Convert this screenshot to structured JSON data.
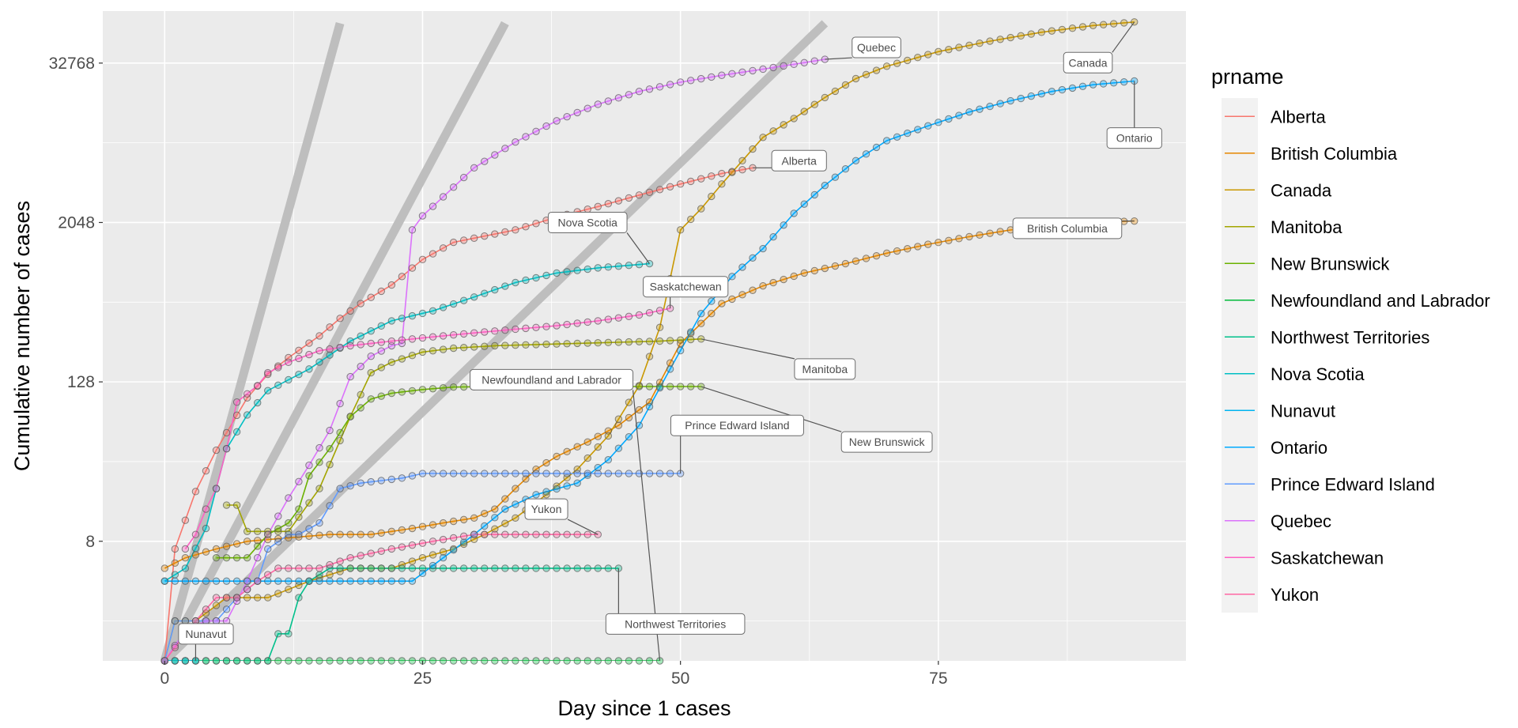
{
  "chart_data": {
    "type": "line",
    "xlabel": "Day since 1 cases",
    "ylabel": "Cumulative number of cases",
    "legend_title": "prname",
    "legend_position": "right",
    "y_scale": "log2",
    "xlim": [
      -6,
      99
    ],
    "ylim": [
      1,
      81000
    ],
    "x_ticks": [
      0,
      25,
      50,
      75
    ],
    "y_ticks": [
      8,
      128,
      2048,
      32768
    ],
    "grid": true,
    "background_color": "#ebebeb",
    "reference_lines": [
      {
        "x": [
          0,
          17
        ],
        "y": [
          1,
          65536
        ]
      },
      {
        "x": [
          0,
          33
        ],
        "y": [
          1,
          65536
        ]
      },
      {
        "x": [
          0,
          64
        ],
        "y": [
          1,
          65536
        ]
      }
    ],
    "series": [
      {
        "name": "Alberta",
        "color": "#F8766D",
        "label": "Alberta",
        "label_at": [
          61.5,
          6000
        ],
        "x": [
          0,
          1,
          3,
          5,
          8,
          10,
          12,
          15,
          17,
          19,
          22,
          25,
          28,
          30,
          34,
          38,
          42,
          46,
          50,
          54,
          57
        ],
        "y": [
          1,
          7,
          19,
          39,
          97,
          146,
          195,
          285,
          386,
          500,
          690,
          1075,
          1450,
          1560,
          1800,
          2250,
          2700,
          3300,
          4000,
          4800,
          5300
        ]
      },
      {
        "name": "British Columbia",
        "color": "#E58700",
        "label": "British Columbia",
        "label_at": [
          87.5,
          1850
        ],
        "x": [
          0,
          2,
          5,
          8,
          12,
          16,
          20,
          24,
          27,
          30,
          32,
          34,
          36,
          38,
          41,
          44,
          47,
          50,
          54,
          58,
          62,
          66,
          70,
          74,
          78,
          82,
          86,
          90,
          94
        ],
        "y": [
          5,
          6,
          7,
          8,
          8.5,
          9,
          9,
          10,
          11,
          12,
          14,
          20,
          28,
          35,
          45,
          60,
          90,
          250,
          500,
          680,
          850,
          1000,
          1200,
          1400,
          1600,
          1800,
          1950,
          2050,
          2100
        ]
      },
      {
        "name": "Canada",
        "color": "#C99800",
        "label": "Canada",
        "label_at": [
          89.5,
          33000
        ],
        "x": [
          0,
          1,
          3,
          6,
          10,
          14,
          18,
          22,
          25,
          28,
          31,
          34,
          37,
          40,
          43,
          46,
          48,
          50,
          52,
          54,
          56,
          58,
          61,
          64,
          67,
          70,
          75,
          80,
          85,
          90,
          94
        ],
        "y": [
          1,
          2,
          2,
          3,
          3,
          4,
          5,
          5,
          6,
          7,
          9,
          12,
          18,
          28,
          50,
          120,
          330,
          1800,
          2600,
          4000,
          6000,
          9000,
          12500,
          18000,
          25000,
          31000,
          40000,
          48000,
          56000,
          63000,
          67000
        ]
      },
      {
        "name": "Manitoba",
        "color": "#A3A500",
        "label": "Manitoba",
        "label_at": [
          64,
          160
        ],
        "x": [
          6,
          7,
          8,
          9,
          12,
          15,
          18,
          20,
          22,
          25,
          28,
          32,
          36,
          40,
          44,
          48,
          52
        ],
        "y": [
          15,
          15,
          9.5,
          9.5,
          9.5,
          20,
          70,
          150,
          180,
          215,
          230,
          240,
          245,
          250,
          255,
          260,
          270
        ]
      },
      {
        "name": "New Brunswick",
        "color": "#6BB100",
        "label": "New Brunswick",
        "label_at": [
          70,
          45
        ],
        "x": [
          5,
          6,
          7,
          8,
          10,
          12,
          13,
          14,
          16,
          18,
          20,
          22,
          25,
          28,
          32,
          36,
          40,
          44,
          48,
          52
        ],
        "y": [
          6,
          6,
          6,
          6,
          9,
          11,
          14,
          25,
          40,
          70,
          95,
          105,
          112,
          117,
          118,
          118,
          118,
          118,
          118,
          118
        ]
      },
      {
        "name": "Newfoundland and Labrador",
        "color": "#00BA38",
        "label": "Newfoundland and Labrador",
        "label_at": [
          37.5,
          133
        ],
        "x": [
          0,
          1,
          2,
          3,
          4,
          5,
          6,
          7,
          8,
          10,
          12,
          14,
          16,
          18,
          20,
          22,
          24,
          26,
          30,
          35,
          40,
          45,
          48
        ],
        "y": [
          1,
          1,
          1,
          1,
          1,
          1,
          1,
          1,
          1,
          1,
          1,
          1,
          1,
          1,
          1,
          1,
          1,
          1,
          1,
          1,
          1,
          1,
          1
        ]
      },
      {
        "name": "Northwest Territories",
        "color": "#00C08B",
        "label": "Northwest Territories",
        "label_at": [
          49.5,
          1.9
        ],
        "x": [
          0,
          2,
          4,
          6,
          8,
          10,
          11,
          12,
          13,
          14,
          16,
          20,
          25,
          30,
          35,
          40,
          44
        ],
        "y": [
          1,
          1,
          1,
          1,
          1,
          1,
          1.6,
          1.6,
          3,
          4,
          5,
          5,
          5,
          5,
          5,
          5,
          5
        ]
      },
      {
        "name": "Nova Scotia",
        "color": "#00BFC4",
        "label": "Nova Scotia",
        "label_at": [
          41,
          2048
        ],
        "x": [
          0,
          2,
          4,
          6,
          8,
          10,
          14,
          18,
          22,
          26,
          30,
          34,
          38,
          42,
          47
        ],
        "y": [
          4,
          5,
          10,
          40,
          72,
          110,
          160,
          260,
          370,
          440,
          560,
          720,
          850,
          930,
          1000
        ]
      },
      {
        "name": "Nunavut",
        "color": "#00B4F0",
        "label": "Nunavut",
        "label_at": [
          4,
          1.6
        ],
        "x": [
          0,
          1,
          2,
          3
        ],
        "y": [
          1,
          1,
          1,
          1
        ]
      },
      {
        "name": "Ontario",
        "color": "#00A9FF",
        "label": "Ontario",
        "label_at": [
          94,
          8900
        ],
        "x": [
          0,
          2,
          5,
          10,
          16,
          21,
          24,
          27,
          30,
          33,
          36,
          40,
          43,
          46,
          49,
          52,
          55,
          58,
          61,
          64,
          67,
          70,
          74,
          78,
          82,
          86,
          90,
          94
        ],
        "y": [
          4,
          4,
          4,
          4,
          4,
          4,
          4,
          6,
          9,
          14,
          18,
          22,
          33,
          60,
          160,
          420,
          800,
          1300,
          2400,
          3900,
          6000,
          8500,
          11000,
          14000,
          17000,
          20000,
          22500,
          24000
        ]
      },
      {
        "name": "Prince Edward Island",
        "color": "#619CFF",
        "label": "Prince Edward Island",
        "label_at": [
          55.5,
          60
        ],
        "x": [
          0,
          1,
          2,
          3,
          5,
          7,
          9,
          10,
          12,
          13,
          15,
          17,
          19,
          21,
          23,
          25,
          28,
          32,
          36,
          40,
          44,
          48,
          50
        ],
        "y": [
          1,
          2,
          2,
          2,
          2,
          3,
          4,
          7,
          9,
          9,
          11,
          20,
          22,
          23,
          24,
          26,
          26,
          26,
          26,
          26,
          26,
          26,
          26
        ]
      },
      {
        "name": "Quebec",
        "color": "#DB72FB",
        "label": "Quebec",
        "label_at": [
          69,
          43000
        ],
        "x": [
          0,
          2,
          4,
          6,
          8,
          10,
          12,
          14,
          16,
          18,
          20,
          22,
          23,
          24,
          25,
          27,
          30,
          34,
          38,
          42,
          46,
          50,
          54,
          58,
          62,
          64
        ],
        "y": [
          1,
          1.7,
          2,
          2,
          4,
          9,
          17,
          30,
          55,
          140,
          200,
          240,
          250,
          1800,
          2300,
          3200,
          5300,
          8300,
          12000,
          16000,
          20000,
          23500,
          26500,
          29500,
          33000,
          35000
        ]
      },
      {
        "name": "Saskatchewan",
        "color": "#FF61C3",
        "label": "Saskatchewan",
        "label_at": [
          50.5,
          670
        ],
        "x": [
          2,
          3,
          4,
          5,
          6,
          7,
          9,
          10,
          12,
          15,
          18,
          22,
          26,
          30,
          34,
          38,
          42,
          46,
          49
        ],
        "y": [
          7,
          9,
          14,
          20,
          40,
          90,
          120,
          150,
          180,
          220,
          240,
          260,
          280,
          300,
          320,
          340,
          370,
          410,
          460
        ]
      },
      {
        "name": "Yukon",
        "color": "#FF67A4",
        "label": "Yukon",
        "label_at": [
          37,
          14
        ],
        "x": [
          0,
          3,
          5,
          7,
          9,
          11,
          13,
          15,
          18,
          22,
          26,
          30,
          34,
          38,
          42
        ],
        "y": [
          1,
          2,
          3,
          3,
          4,
          5,
          5,
          5,
          6,
          7,
          8,
          9,
          9,
          9,
          9
        ]
      }
    ]
  }
}
